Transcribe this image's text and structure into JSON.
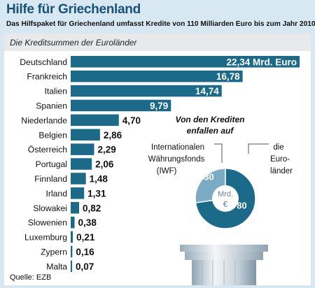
{
  "title": "Hilfe für Griechenland",
  "subtitle": "Das Hilfspaket für Griechenland umfasst Kredite von 110 Milliarden Euro bis zum Jahr 2010.",
  "source": "Quelle: EZB",
  "colors": {
    "bar": "#1b6a8a",
    "bar_light": "#7aaac4",
    "background": "#d7e8f3",
    "title": "#1a5276"
  },
  "chart_data": [
    {
      "type": "bar",
      "orientation": "horizontal",
      "title": "Die Kreditsummen der Euroländer",
      "categories": [
        "Deutschland",
        "Frankreich",
        "Italien",
        "Spanien",
        "Niederlande",
        "Belgien",
        "Österreich",
        "Portugal",
        "Finnland",
        "Irland",
        "Slowakei",
        "Slowenien",
        "Luxemburg",
        "Zypern",
        "Malta"
      ],
      "values": [
        22.34,
        16.78,
        14.74,
        9.79,
        4.7,
        2.86,
        2.29,
        2.06,
        1.48,
        1.31,
        0.82,
        0.38,
        0.21,
        0.16,
        0.07
      ],
      "value_labels": [
        "22,34 Mrd. Euro",
        "16,78",
        "14,74",
        "9,79",
        "4,70",
        "2,86",
        "2,29",
        "2,06",
        "1,48",
        "1,31",
        "0,82",
        "0,38",
        "0,21",
        "0,16",
        "0,07"
      ],
      "xlim": [
        0,
        22.34
      ],
      "grid": false,
      "unit": "Mrd. Euro"
    },
    {
      "type": "pie",
      "title_line1": "Von den Krediten",
      "title_line2": "enfallen auf",
      "center_label": "Mrd.",
      "center_symbol": "€",
      "slices": [
        {
          "label": "Internationalen Währungsfonds (IWF)",
          "label_lines": [
            "Internationalen",
            "Währungsfonds",
            "(IWF)"
          ],
          "value": 30,
          "display": "30"
        },
        {
          "label": "die Euro-länder",
          "label_lines": [
            "die",
            "Euro-",
            "länder"
          ],
          "value": 80,
          "display": "80"
        }
      ]
    }
  ]
}
